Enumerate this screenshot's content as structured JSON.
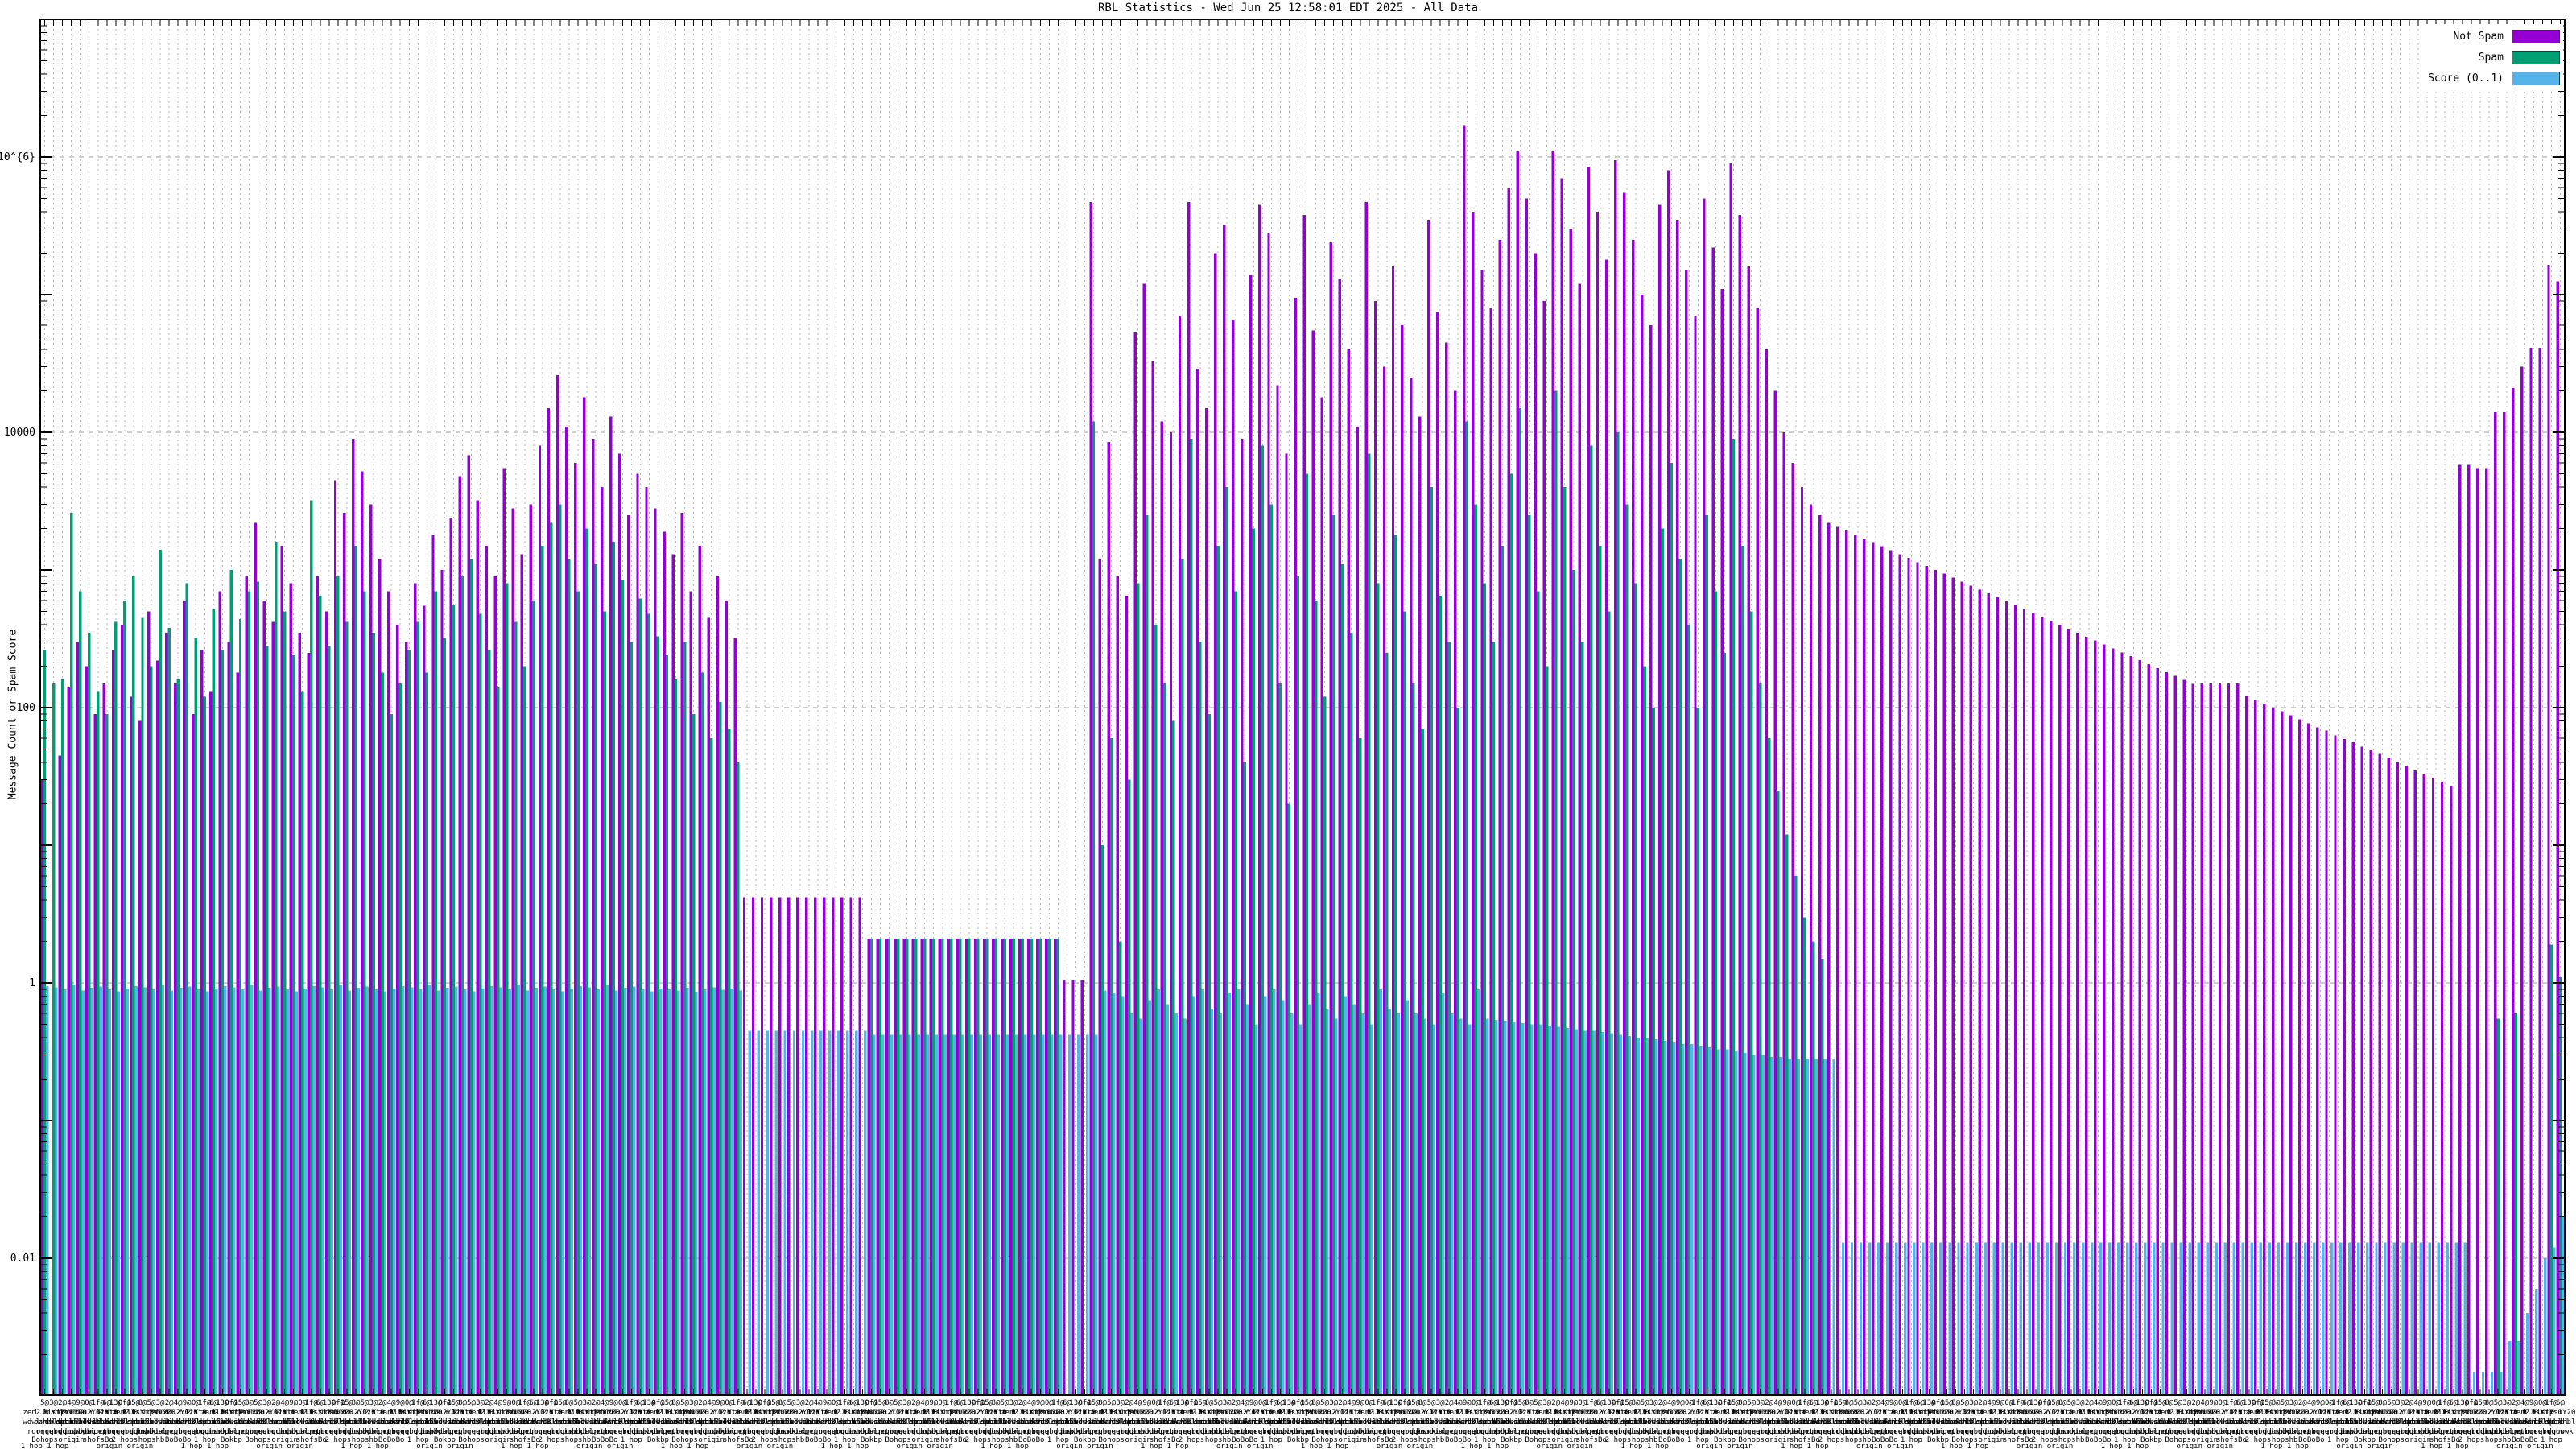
{
  "title": "RBL Statistics - Wed Jun 25 12:58:01 EDT 2025 - All Data",
  "y_axis": {
    "label": "Message Count or Spam Score",
    "ticks": [
      {
        "value": 1000000,
        "label": "1x10^{6}"
      },
      {
        "value": 10000,
        "label": "10000"
      },
      {
        "value": 100,
        "label": "100"
      },
      {
        "value": 1,
        "label": "1"
      },
      {
        "value": 0.01,
        "label": "0.01"
      }
    ]
  },
  "legend": [
    {
      "label": "Not Spam",
      "color": "#9400d3"
    },
    {
      "label": "Spam",
      "color": "#009e73"
    },
    {
      "label": "Score (0..1)",
      "color": "#56b4e9"
    }
  ],
  "chart_data": {
    "type": "bar",
    "log_scale": true,
    "ylim": [
      0.001,
      10000000
    ],
    "grid": "dashed",
    "legend_position": "top-right",
    "title": "RBL Statistics - Wed Jun 25 12:58:01 EDT 2025 - All Data",
    "ylabel": "Message Count or Spam Score",
    "x_label_fragments": {
      "rows": [
        [
          "5@",
          "3@",
          "2@",
          "4@",
          "9@",
          "0@",
          "1f@",
          "6@",
          "13@",
          "0f@",
          "15@",
          "8@"
        ],
        [
          "zen2.0.1.2",
          "l.0.Y.2.1",
          "listY.0.2",
          "ips.Y.0",
          "dsb142.Y.2",
          "Y.2.0.Y.2.1",
          "0.2.0.0.1",
          "2.1.Y.0.z",
          "list2.0.Y",
          "Y.0.2list"
        ],
        [
          "wdwlwdwlwd",
          "bzhbldwbl",
          "sbldnsbl",
          "spamhbl",
          "combldwsb",
          "blwdwscom",
          "mobiteden",
          "kbldwbl3"
        ],
        [
          "rgrgrgrg",
          "orgebrgr",
          "grgoow",
          "dghowk",
          "bopbdbl",
          "hopsgrg",
          "orgetr",
          "gruhge"
        ],
        [
          "Bohops",
          "2 hops",
          "1 hop",
          "origin",
          "hopshb",
          "Bokbp",
          "shofsBo",
          "BoBoBo"
        ],
        [
          "1 hop 1 hop",
          "origin",
          "2 hops",
          "origin origin",
          "1 hop",
          "origin"
        ]
      ]
    },
    "series": [
      {
        "name": "Not Spam",
        "color": "#9400d3",
        "values": [
          30,
          0,
          45,
          140,
          300,
          200,
          90,
          150,
          260,
          400,
          120,
          80,
          500,
          220,
          350,
          150,
          600,
          90,
          260,
          130,
          700,
          300,
          180,
          900,
          2200,
          600,
          420,
          1500,
          800,
          350,
          250,
          900,
          500,
          4500,
          2600,
          9000,
          5200,
          3000,
          1200,
          700,
          400,
          300,
          800,
          550,
          1800,
          1000,
          2400,
          4800,
          6800,
          3200,
          1500,
          900,
          5500,
          2800,
          1300,
          3000,
          8000,
          15000,
          26000,
          11000,
          6000,
          18000,
          9000,
          4000,
          13000,
          7000,
          2500,
          5000,
          4000,
          2800,
          1900,
          1300,
          2600,
          700,
          1500,
          450,
          900,
          600,
          320,
          4.2,
          4.2,
          4.2,
          4.2,
          4.2,
          4.2,
          4.2,
          4.2,
          4.2,
          4.2,
          4.2,
          4.2,
          4.2,
          4.2,
          2.1,
          2.1,
          2.1,
          2.1,
          2.1,
          2.1,
          2.1,
          2.1,
          2.1,
          2.1,
          2.1,
          2.1,
          2.1,
          2.1,
          2.1,
          2.1,
          2.1,
          2.1,
          2.1,
          2.1,
          2.1,
          2.1,
          1.05,
          1.05,
          1.05,
          470000,
          1200,
          8500,
          900,
          650,
          53000,
          120000,
          33000,
          12000,
          10000,
          70000,
          470000,
          29000,
          15000,
          200000,
          320000,
          65000,
          9000,
          140000,
          450000,
          280000,
          22000,
          7000,
          95000,
          380000,
          55000,
          18000,
          240000,
          130000,
          40000,
          11000,
          470000,
          90000,
          30000,
          160000,
          60000,
          25000,
          13000,
          350000,
          75000,
          45000,
          20000,
          1700000,
          400000,
          150000,
          80000,
          250000,
          600000,
          1100000,
          500000,
          200000,
          90000,
          1100000,
          700000,
          300000,
          120000,
          850000,
          400000,
          180000,
          950000,
          550000,
          250000,
          100000,
          60000,
          450000,
          800000,
          350000,
          150000,
          70000,
          500000,
          220000,
          110000,
          900000,
          380000,
          160000,
          80000,
          40000,
          20000,
          10000,
          6000,
          4000,
          3000,
          2500,
          2200,
          2060,
          1930,
          1810,
          1690,
          1590,
          1490,
          1390,
          1300,
          1220,
          1140,
          1070,
          1000,
          940,
          880,
          825,
          770,
          720,
          675,
          632,
          592,
          554,
          519,
          486,
          455,
          426,
          399,
          374,
          350,
          328,
          307,
          287,
          269,
          252,
          236,
          221,
          207,
          194,
          181,
          170,
          159,
          149,
          150,
          150,
          150,
          150,
          150,
          122,
          114,
          107,
          100,
          94,
          88,
          82,
          77,
          72,
          68,
          63,
          59,
          56,
          52,
          49,
          46,
          43,
          40,
          38,
          35,
          33,
          31,
          29,
          27,
          5800,
          5800,
          5500,
          5500,
          14000,
          14000,
          21000,
          30000,
          41000,
          41000,
          165000,
          125000
        ]
      },
      {
        "name": "Spam",
        "color": "#009e73",
        "values": [
          260,
          150,
          160,
          2600,
          700,
          350,
          130,
          90,
          420,
          600,
          900,
          450,
          200,
          1400,
          380,
          160,
          800,
          320,
          120,
          520,
          260,
          1000,
          440,
          700,
          820,
          280,
          1600,
          500,
          240,
          130,
          3200,
          650,
          280,
          900,
          420,
          1500,
          700,
          350,
          180,
          90,
          150,
          260,
          420,
          180,
          700,
          320,
          560,
          900,
          1200,
          480,
          260,
          140,
          800,
          420,
          200,
          600,
          1500,
          2200,
          3000,
          1200,
          700,
          2000,
          1100,
          500,
          1600,
          850,
          300,
          620,
          480,
          330,
          240,
          160,
          300,
          90,
          180,
          60,
          110,
          70,
          40,
          0,
          0,
          0,
          0,
          0,
          0,
          0,
          0,
          0,
          0,
          0,
          0,
          0,
          0,
          2.1,
          2.1,
          2.1,
          2.1,
          2.1,
          2.1,
          2.1,
          2.1,
          2.1,
          2.1,
          2.1,
          2.1,
          2.1,
          2.1,
          2.1,
          2.1,
          2.1,
          2.1,
          2.1,
          2.1,
          2.1,
          2.1,
          0,
          0,
          0,
          12000,
          10,
          60,
          2,
          30,
          800,
          2500,
          400,
          150,
          80,
          1200,
          9000,
          300,
          90,
          1500,
          4000,
          700,
          40,
          2000,
          8000,
          3000,
          150,
          20,
          900,
          5000,
          600,
          120,
          2500,
          1100,
          350,
          60,
          7000,
          800,
          250,
          1800,
          500,
          150,
          70,
          4000,
          650,
          300,
          100,
          12000,
          3000,
          800,
          300,
          1500,
          5000,
          15000,
          2500,
          700,
          200,
          20000,
          4000,
          1000,
          300,
          8000,
          1500,
          500,
          10000,
          3000,
          800,
          200,
          100,
          2000,
          6000,
          1200,
          400,
          100,
          2500,
          700,
          250,
          9000,
          1500,
          500,
          150,
          60,
          25,
          12,
          6,
          3,
          2,
          1.5,
          0,
          0,
          0,
          0,
          0,
          0,
          0,
          0,
          0,
          0,
          0,
          0,
          0,
          0,
          0,
          0,
          0,
          0,
          0,
          0,
          0,
          0,
          0,
          0,
          0,
          0,
          0,
          0,
          0,
          0,
          0,
          0,
          0,
          0,
          0,
          0,
          0,
          0,
          0,
          0,
          0,
          0,
          0,
          0,
          0,
          0,
          0,
          0,
          0,
          0,
          0,
          0,
          0,
          0,
          0,
          0,
          0,
          0,
          0,
          0,
          0,
          0,
          0,
          0,
          0,
          0,
          0,
          0,
          0,
          0,
          0,
          0,
          0,
          0,
          0,
          0.55,
          0,
          0.6,
          0,
          0,
          0,
          1.9,
          1.1
        ]
      },
      {
        "name": "Score (0..1)",
        "color": "#56b4e9",
        "values": [
          0.95,
          0.93,
          0.9,
          0.96,
          0.88,
          0.92,
          0.94,
          0.9,
          0.87,
          0.91,
          0.95,
          0.93,
          0.9,
          0.96,
          0.88,
          0.92,
          0.94,
          0.9,
          0.87,
          0.91,
          0.95,
          0.93,
          0.9,
          0.96,
          0.88,
          0.92,
          0.94,
          0.9,
          0.87,
          0.91,
          0.95,
          0.93,
          0.9,
          0.96,
          0.88,
          0.92,
          0.94,
          0.9,
          0.87,
          0.91,
          0.95,
          0.93,
          0.9,
          0.96,
          0.88,
          0.92,
          0.94,
          0.9,
          0.87,
          0.91,
          0.95,
          0.93,
          0.9,
          0.96,
          0.88,
          0.92,
          0.94,
          0.9,
          0.87,
          0.91,
          0.95,
          0.93,
          0.9,
          0.96,
          0.88,
          0.92,
          0.94,
          0.9,
          0.87,
          0.91,
          0.9,
          0.88,
          0.92,
          0.86,
          0.9,
          0.93,
          0.89,
          0.91,
          0.88,
          0.45,
          0.45,
          0.45,
          0.45,
          0.45,
          0.45,
          0.45,
          0.45,
          0.45,
          0.45,
          0.45,
          0.45,
          0.45,
          0.45,
          0.42,
          0.42,
          0.42,
          0.42,
          0.42,
          0.42,
          0.42,
          0.42,
          0.42,
          0.42,
          0.42,
          0.42,
          0.42,
          0.42,
          0.42,
          0.42,
          0.42,
          0.42,
          0.42,
          0.42,
          0.42,
          0.42,
          0.42,
          0.42,
          0.42,
          0.42,
          0.88,
          0.85,
          0.8,
          0.6,
          0.55,
          0.75,
          0.9,
          0.7,
          0.6,
          0.55,
          0.8,
          0.9,
          0.65,
          0.6,
          0.85,
          0.9,
          0.7,
          0.5,
          0.8,
          0.9,
          0.75,
          0.6,
          0.5,
          0.7,
          0.85,
          0.65,
          0.55,
          0.8,
          0.7,
          0.6,
          0.5,
          0.9,
          0.65,
          0.6,
          0.75,
          0.6,
          0.55,
          0.5,
          0.85,
          0.6,
          0.55,
          0.5,
          0.9,
          0.55,
          0.54,
          0.53,
          0.52,
          0.51,
          0.5,
          0.5,
          0.49,
          0.48,
          0.47,
          0.46,
          0.45,
          0.45,
          0.44,
          0.43,
          0.42,
          0.41,
          0.4,
          0.4,
          0.39,
          0.38,
          0.37,
          0.36,
          0.36,
          0.35,
          0.34,
          0.33,
          0.33,
          0.32,
          0.31,
          0.3,
          0.3,
          0.29,
          0.29,
          0.28,
          0.28,
          0.28,
          0.28,
          0.28,
          0.28,
          0.013,
          0.013,
          0.013,
          0.013,
          0.013,
          0.013,
          0.013,
          0.013,
          0.013,
          0.013,
          0.013,
          0.013,
          0.013,
          0.013,
          0.013,
          0.013,
          0.013,
          0.013,
          0.013,
          0.013,
          0.013,
          0.013,
          0.013,
          0.013,
          0.013,
          0.013,
          0.013,
          0.013,
          0.013,
          0.013,
          0.013,
          0.013,
          0.013,
          0.013,
          0.013,
          0.013,
          0.013,
          0.013,
          0.013,
          0.013,
          0.013,
          0.013,
          0.013,
          0.013,
          0.013,
          0.013,
          0.013,
          0.013,
          0.013,
          0.013,
          0.013,
          0.013,
          0.013,
          0.013,
          0.013,
          0.013,
          0.013,
          0.013,
          0.013,
          0.013,
          0.013,
          0.013,
          0.013,
          0.013,
          0.013,
          0.013,
          0.013,
          0.013,
          0.013,
          0.013,
          0.013,
          0.0015,
          0.0015,
          0.0015,
          0.0015,
          0.0025,
          0.0025,
          0.004,
          0.006,
          0.01,
          0.012,
          0.02,
          0.018
        ]
      }
    ]
  }
}
